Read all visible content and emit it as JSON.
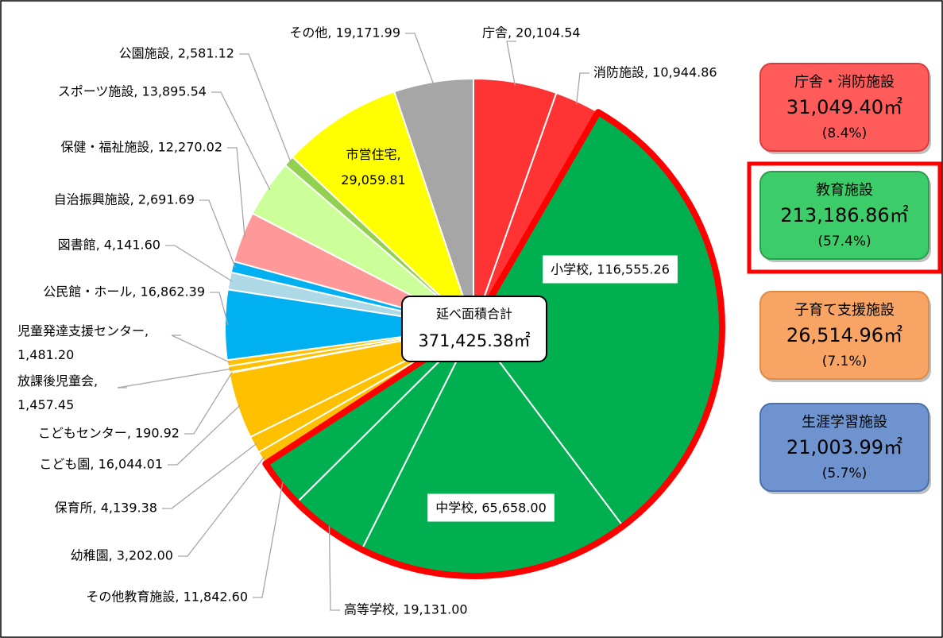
{
  "chart_data": {
    "type": "pie",
    "values": [
      20104.54,
      10944.86,
      116555.26,
      65658.0,
      19131.0,
      11842.6,
      3202.0,
      4139.38,
      16044.01,
      190.92,
      1457.45,
      1481.2,
      16862.39,
      4141.6,
      2691.69,
      12270.02,
      13895.54,
      2581.12,
      29059.81,
      19171.99
    ],
    "value_labels": [
      "庁舎, 20,104.54",
      "消防施設, 10,944.86",
      "小学校, 116,555.26",
      "中学校, 65,658.00",
      "高等学校, 19,131.00",
      "その他教育施設, 11,842.60",
      "幼稚園, 3,202.00",
      "保育所, 4,139.38",
      "こども園, 16,044.01",
      "こどもセンター, 190.92",
      "放課後児童会,\n1,457.45",
      "児童発達支援センター,\n1,481.20",
      "公民館・ホール, 16,862.39",
      "図書館, 4,141.60",
      "自治振興施設, 2,691.69",
      "保健・福祉施設, 12,270.02",
      "スポーツ施設, 13,895.54",
      "公園施設, 2,581.12",
      "市営住宅,\n29,059.81",
      "その他, 19,171.99"
    ],
    "colors": [
      "#ff3333",
      "#ff3333",
      "#00b050",
      "#00b050",
      "#00b050",
      "#00b050",
      "#ffc000",
      "#ffc000",
      "#ffc000",
      "#ffc000",
      "#ffc000",
      "#ffc000",
      "#00b0f0",
      "#add8e6",
      "#00b0f0",
      "#ff9999",
      "#ccff99",
      "#92d050",
      "#ffff00",
      "#a6a6a6"
    ],
    "highlighted": [
      false,
      false,
      true,
      true,
      true,
      true,
      false,
      false,
      false,
      false,
      false,
      false,
      false,
      false,
      false,
      false,
      false,
      false,
      false,
      false
    ],
    "highlight_color": "#ff0000",
    "center_label": {
      "title": "延べ面積合計",
      "value": "371,425.38㎡"
    },
    "groups": [
      {
        "name": "庁舎・消防施設",
        "area": "31,049.40㎡",
        "share": "(8.4%)",
        "color": "#ff5b5b",
        "border_color": "#d93b3b",
        "highlighted": false
      },
      {
        "name": "教育施設",
        "area": "213,186.86㎡",
        "share": "(57.4%)",
        "color": "#3dcc6a",
        "border_color": "#2a9e4c",
        "highlighted": true
      },
      {
        "name": "子育て支援施設",
        "area": "26,514.96㎡",
        "share": "(7.1%)",
        "color": "#f8a464",
        "border_color": "#e08a48",
        "highlighted": false
      },
      {
        "name": "生涯学習施設",
        "area": "21,003.99㎡",
        "share": "(5.7%)",
        "color": "#6e93cf",
        "border_color": "#4a70ad",
        "highlighted": false
      }
    ]
  }
}
